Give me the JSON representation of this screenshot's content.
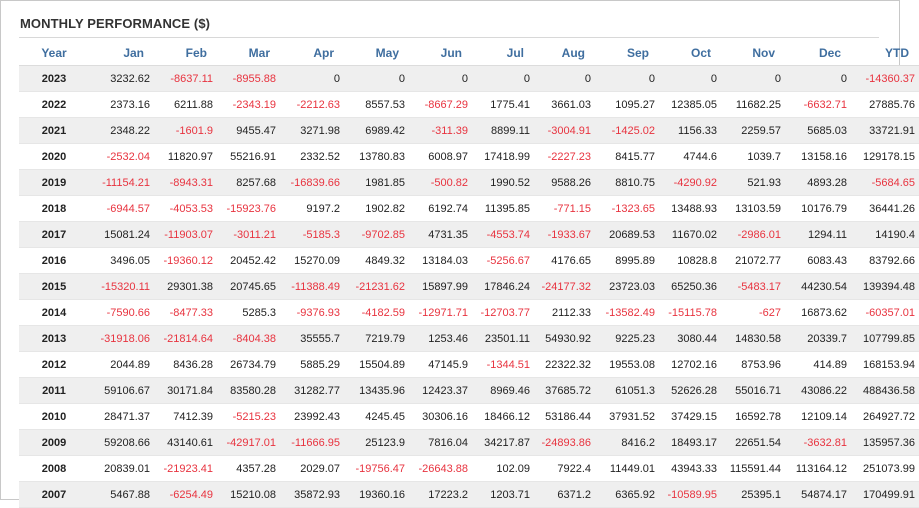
{
  "title": "MONTHLY PERFORMANCE ($)",
  "colors": {
    "negative": "#e8333f",
    "header": "#3f6e9f"
  },
  "columns": [
    "Year",
    "Jan",
    "Feb",
    "Mar",
    "Apr",
    "May",
    "Jun",
    "Jul",
    "Aug",
    "Sep",
    "Oct",
    "Nov",
    "Dec",
    "YTD"
  ],
  "rows": [
    [
      "2023",
      "3232.62",
      "-8637.11",
      "-8955.88",
      "0",
      "0",
      "0",
      "0",
      "0",
      "0",
      "0",
      "0",
      "0",
      "-14360.37"
    ],
    [
      "2022",
      "2373.16",
      "6211.88",
      "-2343.19",
      "-2212.63",
      "8557.53",
      "-8667.29",
      "1775.41",
      "3661.03",
      "1095.27",
      "12385.05",
      "11682.25",
      "-6632.71",
      "27885.76"
    ],
    [
      "2021",
      "2348.22",
      "-1601.9",
      "9455.47",
      "3271.98",
      "6989.42",
      "-311.39",
      "8899.11",
      "-3004.91",
      "-1425.02",
      "1156.33",
      "2259.57",
      "5685.03",
      "33721.91"
    ],
    [
      "2020",
      "-2532.04",
      "11820.97",
      "55216.91",
      "2332.52",
      "13780.83",
      "6008.97",
      "17418.99",
      "-2227.23",
      "8415.77",
      "4744.6",
      "1039.7",
      "13158.16",
      "129178.15"
    ],
    [
      "2019",
      "-11154.21",
      "-8943.31",
      "8257.68",
      "-16839.66",
      "1981.85",
      "-500.82",
      "1990.52",
      "9588.26",
      "8810.75",
      "-4290.92",
      "521.93",
      "4893.28",
      "-5684.65"
    ],
    [
      "2018",
      "-6944.57",
      "-4053.53",
      "-15923.76",
      "9197.2",
      "1902.82",
      "6192.74",
      "11395.85",
      "-771.15",
      "-1323.65",
      "13488.93",
      "13103.59",
      "10176.79",
      "36441.26"
    ],
    [
      "2017",
      "15081.24",
      "-11903.07",
      "-3011.21",
      "-5185.3",
      "-9702.85",
      "4731.35",
      "-4553.74",
      "-1933.67",
      "20689.53",
      "11670.02",
      "-2986.01",
      "1294.11",
      "14190.4"
    ],
    [
      "2016",
      "3496.05",
      "-19360.12",
      "20452.42",
      "15270.09",
      "4849.32",
      "13184.03",
      "-5256.67",
      "4176.65",
      "8995.89",
      "10828.8",
      "21072.77",
      "6083.43",
      "83792.66"
    ],
    [
      "2015",
      "-15320.11",
      "29301.38",
      "20745.65",
      "-11388.49",
      "-21231.62",
      "15897.99",
      "17846.24",
      "-24177.32",
      "23723.03",
      "65250.36",
      "-5483.17",
      "44230.54",
      "139394.48"
    ],
    [
      "2014",
      "-7590.66",
      "-8477.33",
      "5285.3",
      "-9376.93",
      "-4182.59",
      "-12971.71",
      "-12703.77",
      "2112.33",
      "-13582.49",
      "-15115.78",
      "-627",
      "16873.62",
      "-60357.01"
    ],
    [
      "2013",
      "-31918.06",
      "-21814.64",
      "-8404.38",
      "35555.7",
      "7219.79",
      "1253.46",
      "23501.11",
      "54930.92",
      "9225.23",
      "3080.44",
      "14830.58",
      "20339.7",
      "107799.85"
    ],
    [
      "2012",
      "2044.89",
      "8436.28",
      "26734.79",
      "5885.29",
      "15504.89",
      "47145.9",
      "-1344.51",
      "22322.32",
      "19553.08",
      "12702.16",
      "8753.96",
      "414.89",
      "168153.94"
    ],
    [
      "2011",
      "59106.67",
      "30171.84",
      "83580.28",
      "31282.77",
      "13435.96",
      "12423.37",
      "8969.46",
      "37685.72",
      "61051.3",
      "52626.28",
      "55016.71",
      "43086.22",
      "488436.58"
    ],
    [
      "2010",
      "28471.37",
      "7412.39",
      "-5215.23",
      "23992.43",
      "4245.45",
      "30306.16",
      "18466.12",
      "53186.44",
      "37931.52",
      "37429.15",
      "16592.78",
      "12109.14",
      "264927.72"
    ],
    [
      "2009",
      "59208.66",
      "43140.61",
      "-42917.01",
      "-11666.95",
      "25123.9",
      "7816.04",
      "34217.87",
      "-24893.86",
      "8416.2",
      "18493.17",
      "22651.54",
      "-3632.81",
      "135957.36"
    ],
    [
      "2008",
      "20839.01",
      "-21923.41",
      "4357.28",
      "2029.07",
      "-19756.47",
      "-26643.88",
      "102.09",
      "7922.4",
      "11449.01",
      "43943.33",
      "115591.44",
      "113164.12",
      "251073.99"
    ],
    [
      "2007",
      "5467.88",
      "-6254.49",
      "15210.08",
      "35872.93",
      "19360.16",
      "17223.2",
      "1203.71",
      "6371.2",
      "6365.92",
      "-10589.95",
      "25395.1",
      "54874.17",
      "170499.91"
    ]
  ]
}
